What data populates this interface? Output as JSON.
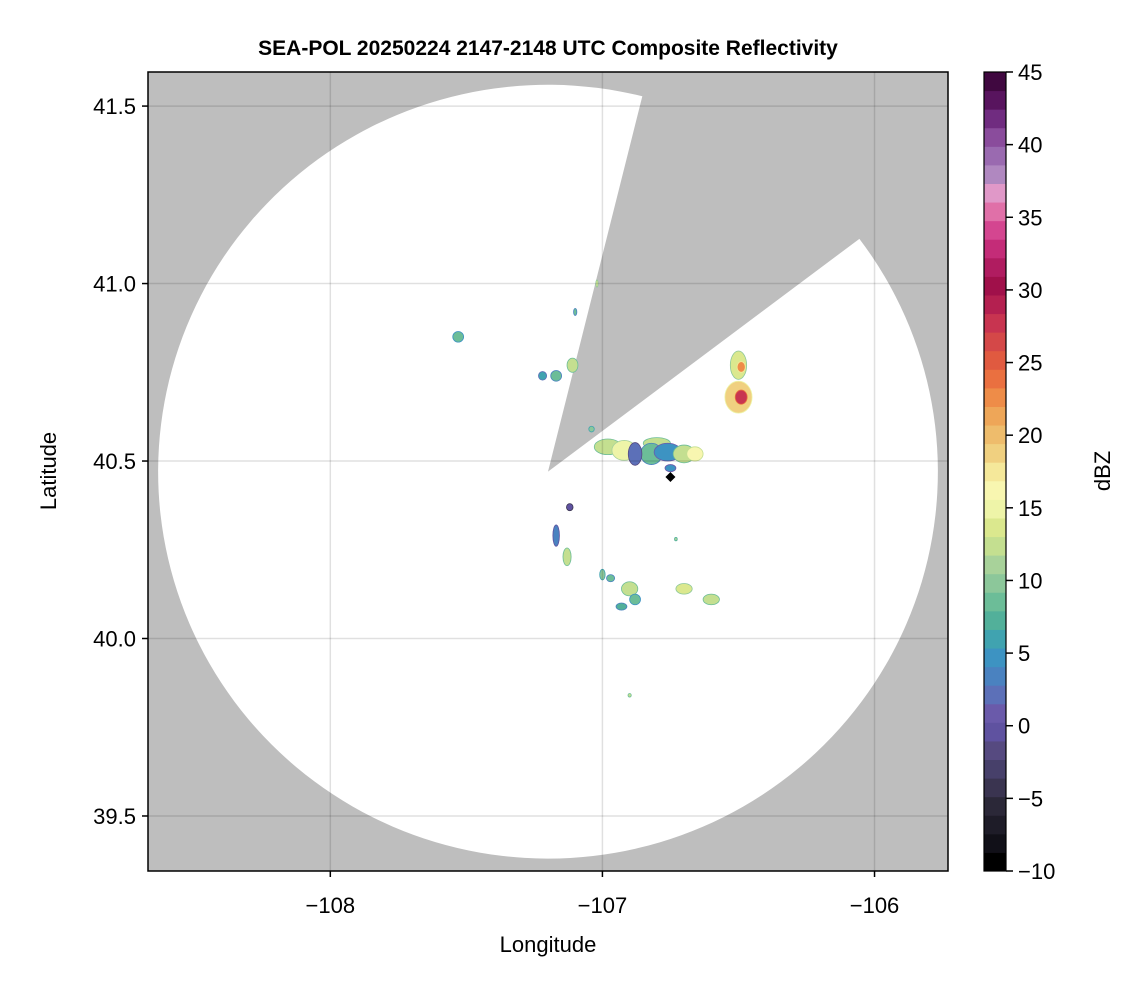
{
  "chart_data": {
    "type": "heatmap",
    "title": "SEA-POL 20250224 2147-2148 UTC Composite Reflectivity",
    "xlabel": "Longitude",
    "ylabel": "Latitude",
    "xlim": [
      -108.67,
      -105.73
    ],
    "ylim": [
      39.345,
      41.596
    ],
    "xticks": [
      -108,
      -107,
      -106
    ],
    "xtick_labels": [
      "−108",
      "−107",
      "−106"
    ],
    "yticks": [
      39.5,
      40.0,
      40.5,
      41.0,
      41.5
    ],
    "ytick_labels": [
      "39.5",
      "40.0",
      "40.5",
      "41.0",
      "41.5"
    ],
    "grid": true,
    "background_color": "#bebebe",
    "coverage_color": "#ffffff",
    "radar": {
      "lon": -107.2,
      "lat": 40.47,
      "max_range_deg_lat": 1.09,
      "blocked_azimuth_deg": [
        14,
        53
      ]
    },
    "radar_marker": {
      "lon": -106.75,
      "lat": 40.455,
      "symbol": "diamond",
      "color": "#000000"
    },
    "colorbar": {
      "label": "dBZ",
      "range": [
        -10,
        45
      ],
      "ticks": [
        -10,
        -5,
        0,
        5,
        10,
        15,
        20,
        25,
        30,
        35,
        40,
        45
      ],
      "tick_labels": [
        "−10",
        "−5",
        "0",
        "5",
        "10",
        "15",
        "20",
        "25",
        "30",
        "35",
        "40",
        "45"
      ],
      "colors": [
        "#000000",
        "#111018",
        "#1e1c28",
        "#2b2838",
        "#3a3450",
        "#47406a",
        "#564a80",
        "#5f52a0",
        "#6a5aaa",
        "#5c70b8",
        "#4a82c0",
        "#3d93c2",
        "#40a3b0",
        "#52b09a",
        "#6cbd98",
        "#8cc79a",
        "#a8d29a",
        "#c4df90",
        "#dbe88e",
        "#eef4a8",
        "#f8f6b0",
        "#f5e89a",
        "#f0d080",
        "#eebc6c",
        "#eea658",
        "#ee8c48",
        "#ea7040",
        "#e05a40",
        "#d44848",
        "#c83450",
        "#b42050",
        "#a0104a",
        "#b01c60",
        "#c42c78",
        "#d44690",
        "#e070a8",
        "#e098c8",
        "#b088c0",
        "#9a6ab0",
        "#8a4c9c",
        "#702c80",
        "#58145e",
        "#400840"
      ]
    },
    "echoes": [
      {
        "lon": -106.98,
        "lat": 40.54,
        "rlon": 0.05,
        "rlat": 0.022,
        "dbz": 12
      },
      {
        "lon": -106.92,
        "lat": 40.53,
        "rlon": 0.045,
        "rlat": 0.028,
        "dbz": 15
      },
      {
        "lon": -106.8,
        "lat": 40.55,
        "rlon": 0.05,
        "rlat": 0.016,
        "dbz": 13
      },
      {
        "lon": -106.82,
        "lat": 40.52,
        "rlon": 0.04,
        "rlat": 0.03,
        "dbz": 8
      },
      {
        "lon": -106.88,
        "lat": 40.52,
        "rlon": 0.025,
        "rlat": 0.032,
        "dbz": 2
      },
      {
        "lon": -106.76,
        "lat": 40.525,
        "rlon": 0.05,
        "rlat": 0.025,
        "dbz": 5
      },
      {
        "lon": -106.7,
        "lat": 40.52,
        "rlon": 0.04,
        "rlat": 0.025,
        "dbz": 13
      },
      {
        "lon": -106.66,
        "lat": 40.52,
        "rlon": 0.03,
        "rlat": 0.02,
        "dbz": 16
      },
      {
        "lon": -106.5,
        "lat": 40.68,
        "rlon": 0.05,
        "rlat": 0.045,
        "dbz": 19
      },
      {
        "lon": -106.49,
        "lat": 40.68,
        "rlon": 0.022,
        "rlat": 0.02,
        "dbz": 28
      },
      {
        "lon": -106.5,
        "lat": 40.77,
        "rlon": 0.03,
        "rlat": 0.04,
        "dbz": 14
      },
      {
        "lon": -106.49,
        "lat": 40.765,
        "rlon": 0.015,
        "rlat": 0.015,
        "dbz": 22
      },
      {
        "lon": -107.53,
        "lat": 40.85,
        "rlon": 0.02,
        "rlat": 0.015,
        "dbz": 9
      },
      {
        "lon": -107.11,
        "lat": 40.77,
        "rlon": 0.02,
        "rlat": 0.02,
        "dbz": 12
      },
      {
        "lon": -107.17,
        "lat": 40.74,
        "rlon": 0.02,
        "rlat": 0.015,
        "dbz": 8
      },
      {
        "lon": -107.22,
        "lat": 40.74,
        "rlon": 0.015,
        "rlat": 0.012,
        "dbz": 6
      },
      {
        "lon": -107.04,
        "lat": 40.59,
        "rlon": 0.01,
        "rlat": 0.008,
        "dbz": 10
      },
      {
        "lon": -107.12,
        "lat": 40.37,
        "rlon": 0.012,
        "rlat": 0.01,
        "dbz": 0
      },
      {
        "lon": -107.17,
        "lat": 40.29,
        "rlon": 0.012,
        "rlat": 0.03,
        "dbz": 3
      },
      {
        "lon": -107.13,
        "lat": 40.23,
        "rlon": 0.015,
        "rlat": 0.025,
        "dbz": 12
      },
      {
        "lon": -107.0,
        "lat": 40.18,
        "rlon": 0.01,
        "rlat": 0.015,
        "dbz": 10
      },
      {
        "lon": -106.97,
        "lat": 40.17,
        "rlon": 0.015,
        "rlat": 0.01,
        "dbz": 8
      },
      {
        "lon": -106.9,
        "lat": 40.14,
        "rlon": 0.03,
        "rlat": 0.02,
        "dbz": 13
      },
      {
        "lon": -106.88,
        "lat": 40.11,
        "rlon": 0.02,
        "rlat": 0.015,
        "dbz": 9
      },
      {
        "lon": -106.93,
        "lat": 40.09,
        "rlon": 0.02,
        "rlat": 0.01,
        "dbz": 7
      },
      {
        "lon": -106.7,
        "lat": 40.14,
        "rlon": 0.03,
        "rlat": 0.015,
        "dbz": 14
      },
      {
        "lon": -106.6,
        "lat": 40.11,
        "rlon": 0.03,
        "rlat": 0.015,
        "dbz": 13
      },
      {
        "lon": -106.73,
        "lat": 40.28,
        "rlon": 0.005,
        "rlat": 0.005,
        "dbz": 11
      },
      {
        "lon": -106.9,
        "lat": 39.84,
        "rlon": 0.006,
        "rlat": 0.005,
        "dbz": 12
      },
      {
        "lon": -106.75,
        "lat": 40.48,
        "rlon": 0.02,
        "rlat": 0.01,
        "dbz": 5
      },
      {
        "lon": -107.02,
        "lat": 41.0,
        "rlon": 0.004,
        "rlat": 0.01,
        "dbz": 14
      },
      {
        "lon": -107.1,
        "lat": 40.92,
        "rlon": 0.006,
        "rlat": 0.01,
        "dbz": 8
      }
    ]
  }
}
